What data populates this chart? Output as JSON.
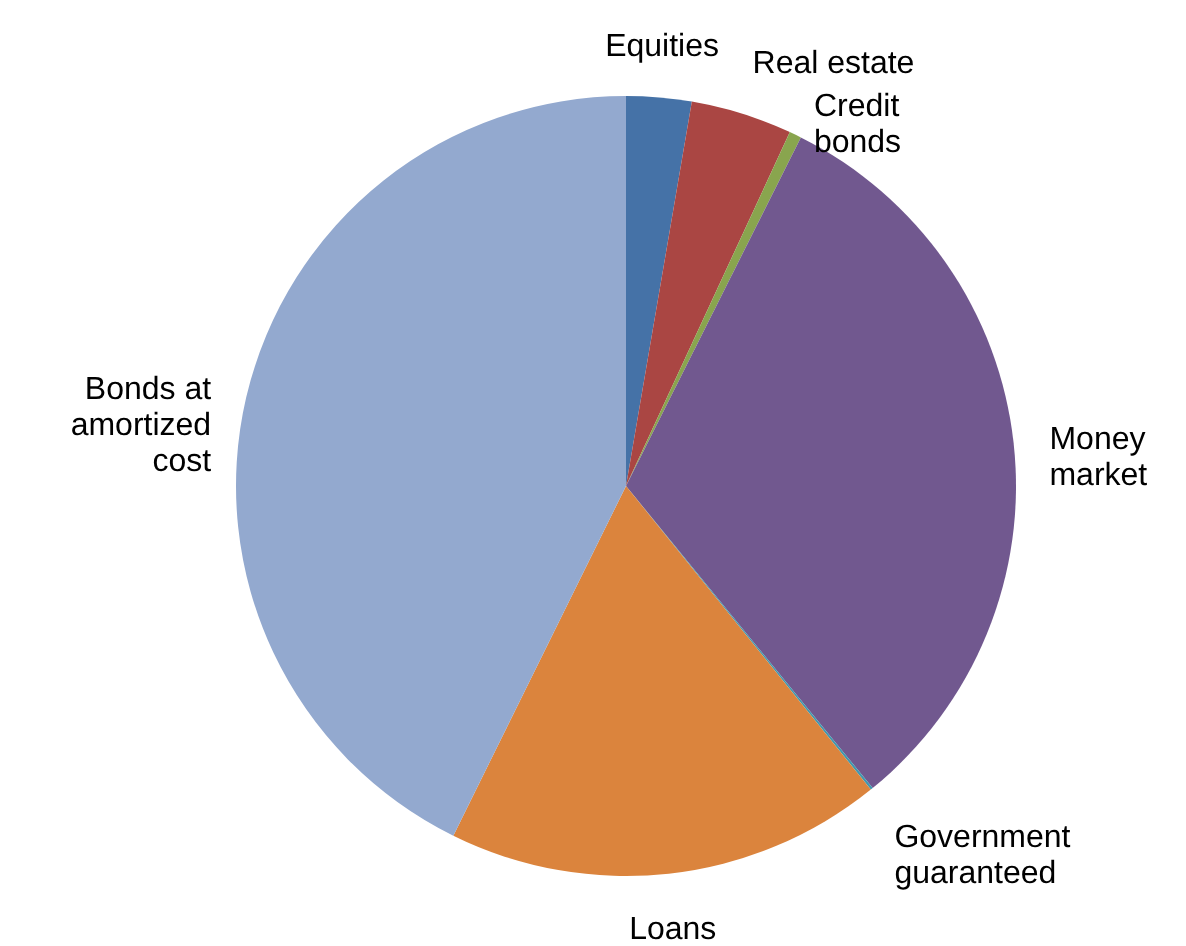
{
  "chart_data": {
    "type": "pie",
    "categories": [
      "Equities",
      "Real estate",
      "Credit\nbonds",
      "Money\nmarket",
      "Government\nguaranteed",
      "Loans",
      "Bonds at\namortized\ncost"
    ],
    "values": [
      2.7,
      4.2,
      0.5,
      31.7,
      0.1,
      18.1,
      42.7
    ],
    "colors": [
      "#4572a7",
      "#aa4643",
      "#89a54e",
      "#71588f",
      "#4198af",
      "#db843d",
      "#93a9cf"
    ]
  }
}
